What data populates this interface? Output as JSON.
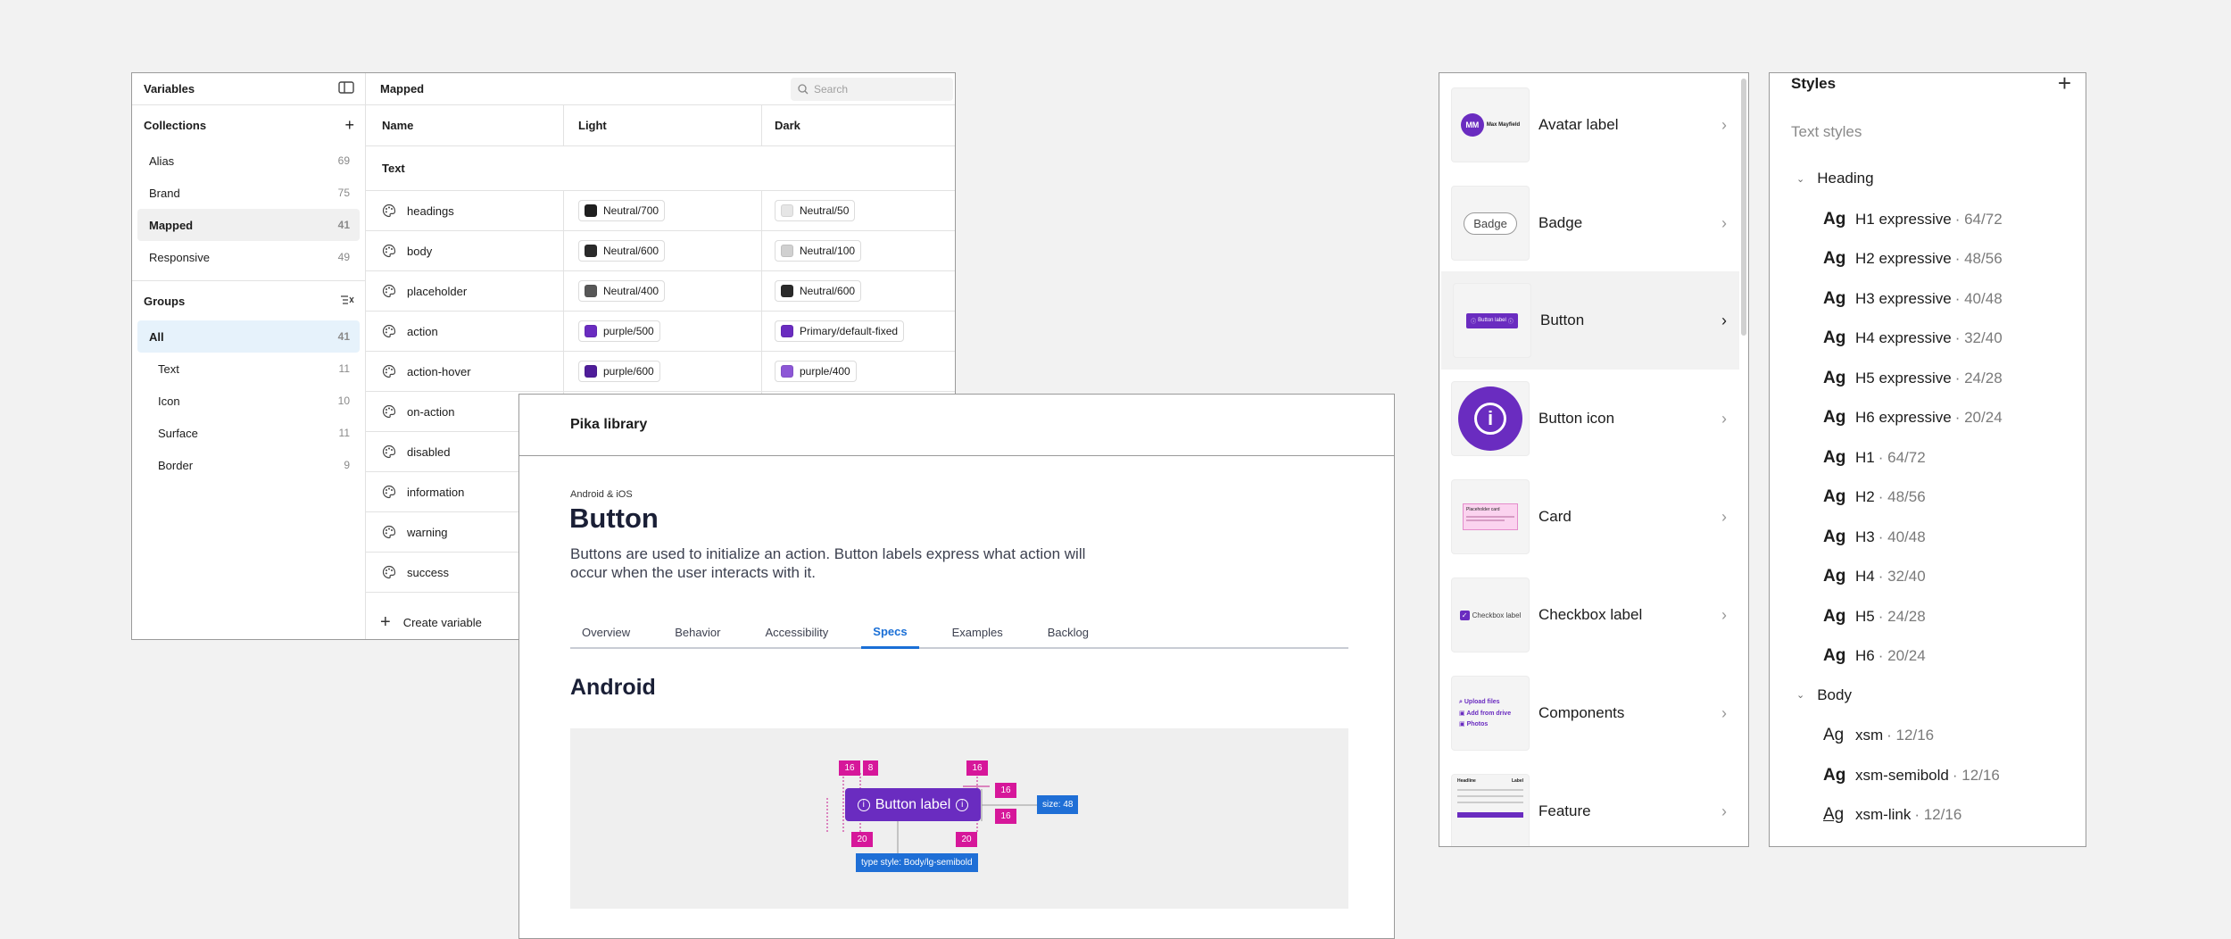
{
  "variables": {
    "title": "Variables",
    "collections_title": "Collections",
    "collections": [
      {
        "name": "Alias",
        "count": "69"
      },
      {
        "name": "Brand",
        "count": "75"
      },
      {
        "name": "Mapped",
        "count": "41"
      },
      {
        "name": "Responsive",
        "count": "49"
      }
    ],
    "groups_title": "Groups",
    "groups": [
      {
        "name": "All",
        "count": "41"
      },
      {
        "name": "Text",
        "count": "11"
      },
      {
        "name": "Icon",
        "count": "10"
      },
      {
        "name": "Surface",
        "count": "11"
      },
      {
        "name": "Border",
        "count": "9"
      }
    ],
    "mode_title": "Mapped",
    "search_placeholder": "Search",
    "columns": [
      "Name",
      "Light",
      "Dark"
    ],
    "group_label": "Text",
    "rows": [
      {
        "name": "headings",
        "light": "Neutral/700",
        "light_color": "#1f1f1f",
        "dark": "Neutral/50",
        "dark_color": "#e6e6e6"
      },
      {
        "name": "body",
        "light": "Neutral/600",
        "light_color": "#2a2a2a",
        "dark": "Neutral/100",
        "dark_color": "#d0d0d0"
      },
      {
        "name": "placeholder",
        "light": "Neutral/400",
        "light_color": "#575757",
        "dark": "Neutral/600",
        "dark_color": "#2a2a2a"
      },
      {
        "name": "action",
        "light": "purple/500",
        "light_color": "#6a2cc0",
        "dark": "Primary/default-fixed",
        "dark_color": "#6a2cc0"
      },
      {
        "name": "action-hover",
        "light": "purple/600",
        "light_color": "#4f1d9a",
        "dark": "purple/400",
        "dark_color": "#8d57d6"
      },
      {
        "name": "on-action"
      },
      {
        "name": "disabled"
      },
      {
        "name": "information"
      },
      {
        "name": "warning"
      },
      {
        "name": "success"
      }
    ],
    "create_label": "Create variable"
  },
  "doc": {
    "brand": "Pika library",
    "eyebrow": "Android & iOS",
    "title": "Button",
    "description": "Buttons are used to initialize an action. Button labels express what action will occur when the user interacts with it.",
    "tabs": [
      "Overview",
      "Behavior",
      "Accessibility",
      "Specs",
      "Examples",
      "Backlog"
    ],
    "active_tab": "Specs",
    "section": "Android",
    "spec": {
      "button_label": "Button label",
      "tags_top": [
        "16",
        "8",
        "16"
      ],
      "tags_right": [
        "16",
        "16"
      ],
      "tags_bottom": [
        "20",
        "20"
      ],
      "size_tag": "size: 48",
      "type_tag": "type style: Body/lg-semibold",
      "accent": "#6a2cc0",
      "spec_pink": "#d6179a",
      "spec_blue": "#1f6fd6"
    }
  },
  "components": [
    {
      "label": "Avatar label",
      "thumb_text": "Max Mayfield",
      "avatar_initials": "MM"
    },
    {
      "label": "Badge",
      "thumb_text": "Badge"
    },
    {
      "label": "Button",
      "thumb_text": "Button label",
      "highlighted": true
    },
    {
      "label": "Button icon"
    },
    {
      "label": "Card",
      "thumb_text": "Placeholder card"
    },
    {
      "label": "Checkbox label",
      "thumb_text": "Checkbox label"
    },
    {
      "label": "Components",
      "thumb_items": [
        "Upload files",
        "Add from drive",
        "Photos"
      ]
    },
    {
      "label": "Feature",
      "thumb_text": "Headline",
      "thumb_label": "Label"
    }
  ],
  "styles": {
    "title": "Styles",
    "subtitle": "Text styles",
    "groups": [
      {
        "name": "Heading",
        "items": [
          {
            "name": "H1 expressive",
            "size": "· 64/72",
            "weight": "bold"
          },
          {
            "name": "H2 expressive",
            "size": "· 48/56",
            "weight": "bold"
          },
          {
            "name": "H3 expressive",
            "size": "· 40/48",
            "weight": "bold"
          },
          {
            "name": "H4 expressive",
            "size": "· 32/40",
            "weight": "bold"
          },
          {
            "name": "H5 expressive",
            "size": "· 24/28",
            "weight": "bold"
          },
          {
            "name": "H6 expressive",
            "size": "· 20/24",
            "weight": "bold"
          },
          {
            "name": "H1",
            "size": "· 64/72",
            "weight": "semibold"
          },
          {
            "name": "H2",
            "size": "· 48/56",
            "weight": "semibold"
          },
          {
            "name": "H3",
            "size": "· 40/48",
            "weight": "semibold"
          },
          {
            "name": "H4",
            "size": "· 32/40",
            "weight": "semibold"
          },
          {
            "name": "H5",
            "size": "· 24/28",
            "weight": "semibold"
          },
          {
            "name": "H6",
            "size": "· 20/24",
            "weight": "semibold"
          }
        ]
      },
      {
        "name": "Body",
        "items": [
          {
            "name": "xsm",
            "size": "· 12/16",
            "weight": "regular"
          },
          {
            "name": "xsm-semibold",
            "size": "· 12/16",
            "weight": "semibold"
          },
          {
            "name": "xsm-link",
            "size": "· 12/16",
            "weight": "link"
          }
        ]
      }
    ]
  }
}
